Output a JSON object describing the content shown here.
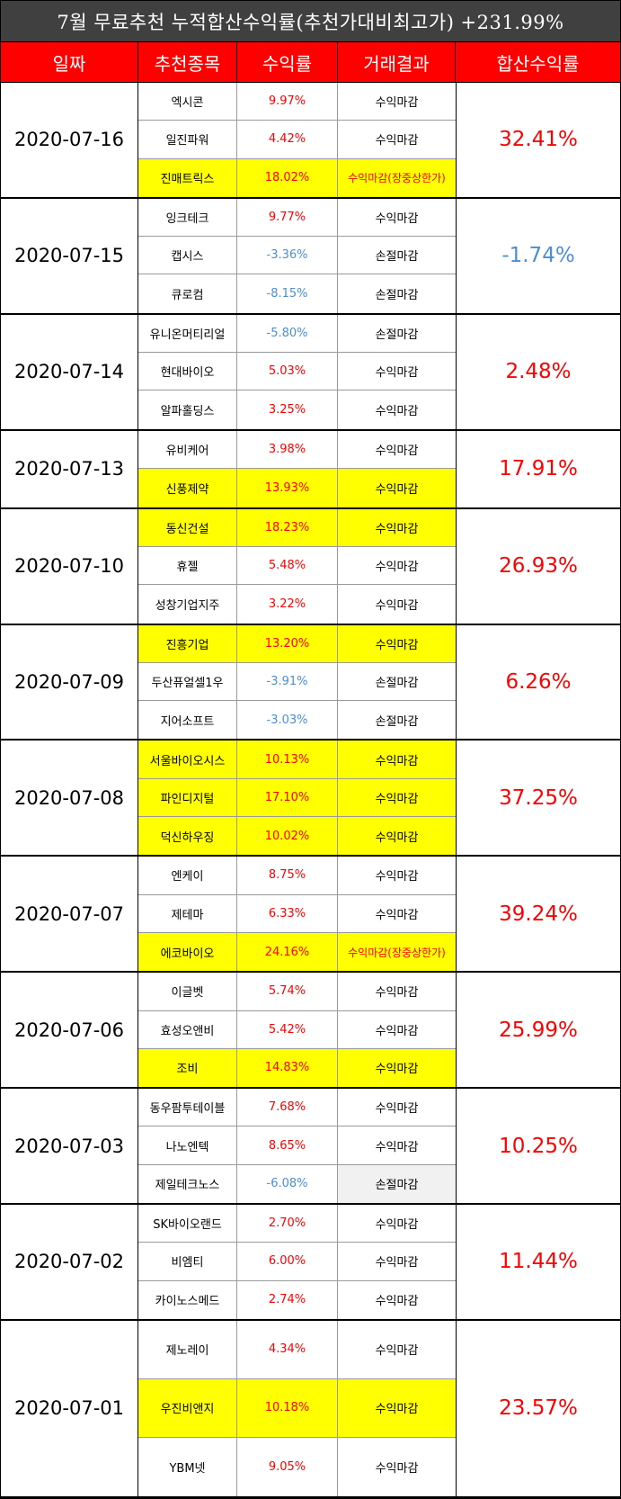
{
  "title": "7월 무료추천 누적합산수익률(추천가대비최고가) +231.99%",
  "headers": [
    "일짜",
    "추천종목",
    "수익률",
    "거래결과",
    "합산수익률"
  ],
  "colors": {
    "title_bg": "#404040",
    "header_bg": "#ff0000",
    "highlight": "#ffff00",
    "positive": "#ff0000",
    "negative": "#4a8ed6"
  },
  "groups": [
    {
      "date": "2020-07-16",
      "total": "32.41%",
      "total_sign": "pos",
      "rows": [
        {
          "stock": "엑시콘",
          "ret": "9.97%",
          "result": "수익마감",
          "sign": "pos",
          "hl": false
        },
        {
          "stock": "일진파워",
          "ret": "4.42%",
          "result": "수익마감",
          "sign": "pos",
          "hl": false
        },
        {
          "stock": "진매트릭스",
          "ret": "18.02%",
          "result": "수익마감(장중상한가)",
          "sign": "pos",
          "hl": true,
          "result_red": true
        }
      ]
    },
    {
      "date": "2020-07-15",
      "total": "-1.74%",
      "total_sign": "neg",
      "rows": [
        {
          "stock": "잉크테크",
          "ret": "9.77%",
          "result": "수익마감",
          "sign": "pos",
          "hl": false
        },
        {
          "stock": "캡시스",
          "ret": "-3.36%",
          "result": "손절마감",
          "sign": "neg",
          "hl": false
        },
        {
          "stock": "큐로컴",
          "ret": "-8.15%",
          "result": "손절마감",
          "sign": "neg",
          "hl": false
        }
      ]
    },
    {
      "date": "2020-07-14",
      "total": "2.48%",
      "total_sign": "pos",
      "rows": [
        {
          "stock": "유니온머티리얼",
          "ret": "-5.80%",
          "result": "손절마감",
          "sign": "neg",
          "hl": false
        },
        {
          "stock": "현대바이오",
          "ret": "5.03%",
          "result": "수익마감",
          "sign": "pos",
          "hl": false
        },
        {
          "stock": "알파홀딩스",
          "ret": "3.25%",
          "result": "수익마감",
          "sign": "pos",
          "hl": false
        }
      ]
    },
    {
      "date": "2020-07-13",
      "total": "17.91%",
      "total_sign": "pos",
      "rows": [
        {
          "stock": "유비케어",
          "ret": "3.98%",
          "result": "수익마감",
          "sign": "pos",
          "hl": false
        },
        {
          "stock": "신풍제약",
          "ret": "13.93%",
          "result": "수익마감",
          "sign": "pos",
          "hl": true
        }
      ]
    },
    {
      "date": "2020-07-10",
      "total": "26.93%",
      "total_sign": "pos",
      "rows": [
        {
          "stock": "동신건설",
          "ret": "18.23%",
          "result": "수익마감",
          "sign": "pos",
          "hl": true
        },
        {
          "stock": "휴젤",
          "ret": "5.48%",
          "result": "수익마감",
          "sign": "pos",
          "hl": false
        },
        {
          "stock": "성창기업지주",
          "ret": "3.22%",
          "result": "수익마감",
          "sign": "pos",
          "hl": false
        }
      ]
    },
    {
      "date": "2020-07-09",
      "total": "6.26%",
      "total_sign": "pos",
      "rows": [
        {
          "stock": "진흥기업",
          "ret": "13.20%",
          "result": "수익마감",
          "sign": "pos",
          "hl": true
        },
        {
          "stock": "두산퓨얼셀1우",
          "ret": "-3.91%",
          "result": "손절마감",
          "sign": "neg",
          "hl": false
        },
        {
          "stock": "지어소프트",
          "ret": "-3.03%",
          "result": "손절마감",
          "sign": "neg",
          "hl": false
        }
      ]
    },
    {
      "date": "2020-07-08",
      "total": "37.25%",
      "total_sign": "pos",
      "rows": [
        {
          "stock": "서울바이오시스",
          "ret": "10.13%",
          "result": "수익마감",
          "sign": "pos",
          "hl": true
        },
        {
          "stock": "파인디지털",
          "ret": "17.10%",
          "result": "수익마감",
          "sign": "pos",
          "hl": true
        },
        {
          "stock": "덕신하우징",
          "ret": "10.02%",
          "result": "수익마감",
          "sign": "pos",
          "hl": true
        }
      ]
    },
    {
      "date": "2020-07-07",
      "total": "39.24%",
      "total_sign": "pos",
      "rows": [
        {
          "stock": "엔케이",
          "ret": "8.75%",
          "result": "수익마감",
          "sign": "pos",
          "hl": false
        },
        {
          "stock": "제테마",
          "ret": "6.33%",
          "result": "수익마감",
          "sign": "pos",
          "hl": false
        },
        {
          "stock": "에코바이오",
          "ret": "24.16%",
          "result": "수익마감(장중상한가)",
          "sign": "pos",
          "hl": true,
          "result_red": true
        }
      ]
    },
    {
      "date": "2020-07-06",
      "total": "25.99%",
      "total_sign": "pos",
      "rows": [
        {
          "stock": "이글벳",
          "ret": "5.74%",
          "result": "수익마감",
          "sign": "pos",
          "hl": false
        },
        {
          "stock": "효성오앤비",
          "ret": "5.42%",
          "result": "수익마감",
          "sign": "pos",
          "hl": false
        },
        {
          "stock": "조비",
          "ret": "14.83%",
          "result": "수익마감",
          "sign": "pos",
          "hl": true
        }
      ]
    },
    {
      "date": "2020-07-03",
      "total": "10.25%",
      "total_sign": "pos",
      "rows": [
        {
          "stock": "동우팜투테이블",
          "ret": "7.68%",
          "result": "수익마감",
          "sign": "pos",
          "hl": false
        },
        {
          "stock": "나노엔텍",
          "ret": "8.65%",
          "result": "수익마감",
          "sign": "pos",
          "hl": false
        },
        {
          "stock": "제일테크노스",
          "ret": "-6.08%",
          "result": "손절마감",
          "sign": "neg",
          "hl": false,
          "result_gray": true
        }
      ]
    },
    {
      "date": "2020-07-02",
      "total": "11.44%",
      "total_sign": "pos",
      "rows": [
        {
          "stock": "SK바이오랜드",
          "ret": "2.70%",
          "result": "수익마감",
          "sign": "pos",
          "hl": false
        },
        {
          "stock": "비엠티",
          "ret": "6.00%",
          "result": "수익마감",
          "sign": "pos",
          "hl": false
        },
        {
          "stock": "카이노스메드",
          "ret": "2.74%",
          "result": "수익마감",
          "sign": "pos",
          "hl": false
        }
      ]
    },
    {
      "date": "2020-07-01",
      "total": "23.57%",
      "total_sign": "pos",
      "rows": [
        {
          "stock": "제노레이",
          "ret": "4.34%",
          "result": "수익마감",
          "sign": "pos",
          "hl": false
        },
        {
          "stock": "우진비앤지",
          "ret": "10.18%",
          "result": "수익마감",
          "sign": "pos",
          "hl": true
        },
        {
          "stock": "YBM넷",
          "ret": "9.05%",
          "result": "수익마감",
          "sign": "pos",
          "hl": false
        }
      ]
    }
  ]
}
